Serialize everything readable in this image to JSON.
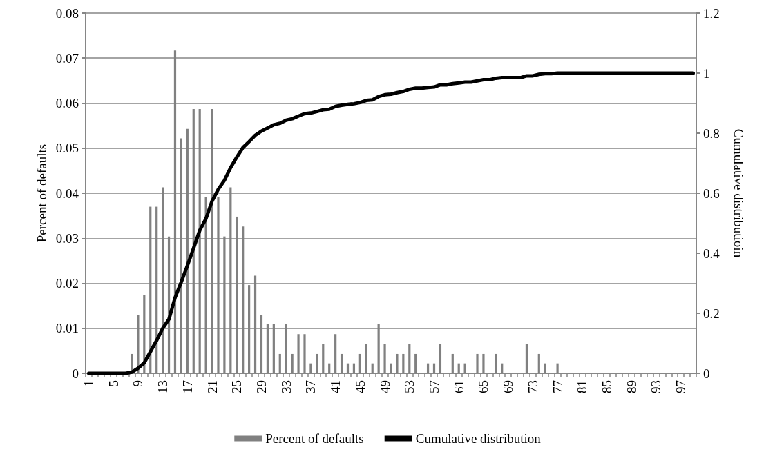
{
  "chart_data": {
    "type": "bar",
    "ylabel": "Percent of defaults",
    "y2label": "Cumulative distributioin",
    "categories": [
      "1",
      null,
      null,
      null,
      "5",
      null,
      null,
      null,
      "9",
      null,
      null,
      null,
      "13",
      null,
      null,
      null,
      "17",
      null,
      null,
      null,
      "21",
      null,
      null,
      null,
      "25",
      null,
      null,
      null,
      "29",
      null,
      null,
      null,
      "33",
      null,
      null,
      null,
      "37",
      null,
      null,
      null,
      "41",
      null,
      null,
      null,
      "45",
      null,
      null,
      null,
      "49",
      null,
      null,
      null,
      "53",
      null,
      null,
      null,
      "57",
      null,
      null,
      null,
      "61",
      null,
      null,
      null,
      "65",
      null,
      null,
      null,
      "69",
      null,
      null,
      null,
      "73",
      null,
      null,
      null,
      "77",
      null,
      null,
      null,
      "81",
      null,
      null,
      null,
      "85",
      null,
      null,
      null,
      "89",
      null,
      null,
      null,
      "93",
      null,
      null,
      null,
      "97",
      null,
      null
    ],
    "series": [
      {
        "name": "Percent of defaults",
        "color": "#808080",
        "values": [
          0,
          0,
          0,
          0,
          0,
          0,
          0,
          0.0043,
          0.013,
          0.0174,
          0.037,
          0.037,
          0.0413,
          0.0304,
          0.0717,
          0.0522,
          0.0543,
          0.0587,
          0.0587,
          0.0391,
          0.0587,
          0.0391,
          0.0304,
          0.0413,
          0.0348,
          0.0326,
          0.0196,
          0.0217,
          0.013,
          0.0109,
          0.0109,
          0.0043,
          0.0109,
          0.0043,
          0.0087,
          0.0087,
          0.0022,
          0.0043,
          0.0065,
          0.0022,
          0.0087,
          0.0043,
          0.0022,
          0.0022,
          0.0043,
          0.0065,
          0.0022,
          0.0109,
          0.0065,
          0.0022,
          0.0043,
          0.0043,
          0.0065,
          0.0043,
          0,
          0.0022,
          0.0022,
          0.0065,
          0,
          0.0043,
          0.0022,
          0.0022,
          0,
          0.0043,
          0.0043,
          0,
          0.0043,
          0.0022,
          0,
          0,
          0,
          0.0065,
          0,
          0.0043,
          0.0022,
          0,
          0.0022,
          0,
          0,
          0,
          0,
          0,
          0,
          0,
          0,
          0,
          0,
          0,
          0,
          0,
          0,
          0,
          0,
          0,
          0,
          0,
          0,
          0,
          0
        ]
      },
      {
        "name": "Cumulative distribution",
        "type": "line",
        "axis": "y2",
        "color": "#000000",
        "values": [
          0,
          0,
          0,
          0,
          0,
          0,
          0,
          0.004,
          0.017,
          0.035,
          0.072,
          0.109,
          0.15,
          0.18,
          0.252,
          0.304,
          0.359,
          0.417,
          0.476,
          0.515,
          0.574,
          0.613,
          0.643,
          0.685,
          0.72,
          0.752,
          0.772,
          0.793,
          0.807,
          0.817,
          0.828,
          0.833,
          0.843,
          0.848,
          0.857,
          0.865,
          0.867,
          0.872,
          0.878,
          0.88,
          0.889,
          0.893,
          0.896,
          0.898,
          0.902,
          0.909,
          0.911,
          0.922,
          0.928,
          0.93,
          0.935,
          0.939,
          0.946,
          0.95,
          0.95,
          0.952,
          0.954,
          0.961,
          0.961,
          0.965,
          0.967,
          0.97,
          0.97,
          0.974,
          0.978,
          0.978,
          0.983,
          0.985,
          0.985,
          0.985,
          0.985,
          0.991,
          0.991,
          0.996,
          0.998,
          0.998,
          1,
          1,
          1,
          1,
          1,
          1,
          1,
          1,
          1,
          1,
          1,
          1,
          1,
          1,
          1,
          1,
          1,
          1,
          1,
          1,
          1,
          1,
          1
        ]
      }
    ],
    "ylim": [
      0,
      0.08
    ],
    "yticks": [
      0,
      0.01,
      0.02,
      0.03,
      0.04,
      0.05,
      0.06,
      0.07,
      0.08
    ],
    "y2lim": [
      0,
      1.2
    ],
    "y2ticks": [
      0,
      0.2,
      0.4,
      0.6,
      0.8,
      1,
      1.2
    ],
    "grid": "y",
    "legend": "bottom",
    "marker": "none",
    "line_style": "solid"
  }
}
